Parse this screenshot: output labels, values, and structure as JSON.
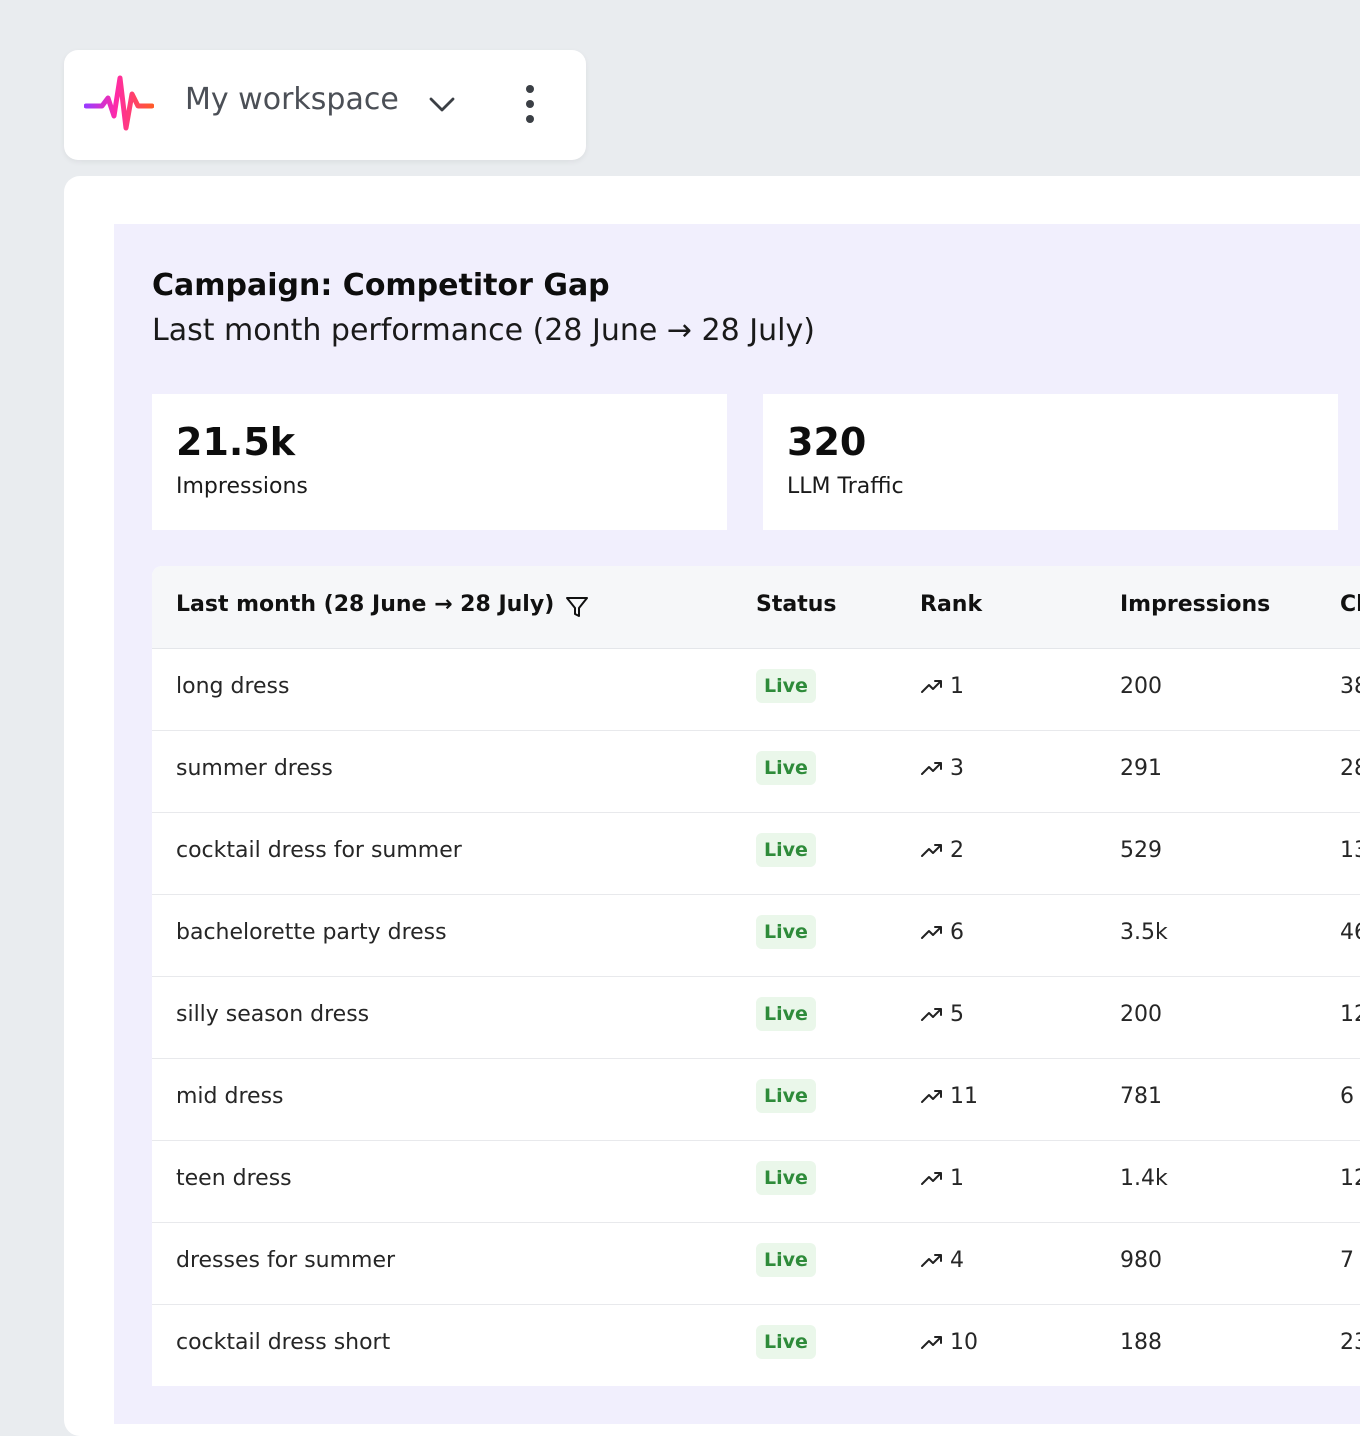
{
  "workspace": {
    "name": "My workspace",
    "logo_icon": "waveform-logo-icon",
    "chevron_icon": "chevron-down-icon",
    "more_icon": "more-vertical-icon"
  },
  "campaign": {
    "title": "Campaign: Competitor Gap",
    "subtitle": "Last month performance (28 June → 28 July)"
  },
  "stats": [
    {
      "value": "21.5k",
      "label": "Impressions"
    },
    {
      "value": "320",
      "label": "LLM Traffic"
    }
  ],
  "table": {
    "headers": {
      "period": "Last month (28 June → 28 July)",
      "status": "Status",
      "rank": "Rank",
      "impressions": "Impressions",
      "clicks": "Cl"
    },
    "rows": [
      {
        "keyword": "long dress",
        "status": "Live",
        "rank": "1",
        "impressions": "200",
        "clicks": "38"
      },
      {
        "keyword": "summer dress",
        "status": "Live",
        "rank": "3",
        "impressions": "291",
        "clicks": "28"
      },
      {
        "keyword": "cocktail dress for summer",
        "status": "Live",
        "rank": "2",
        "impressions": "529",
        "clicks": "13"
      },
      {
        "keyword": "bachelorette party dress",
        "status": "Live",
        "rank": "6",
        "impressions": "3.5k",
        "clicks": "46"
      },
      {
        "keyword": "silly season dress",
        "status": "Live",
        "rank": "5",
        "impressions": "200",
        "clicks": "12"
      },
      {
        "keyword": "mid dress",
        "status": "Live",
        "rank": "11",
        "impressions": "781",
        "clicks": "6"
      },
      {
        "keyword": "teen dress",
        "status": "Live",
        "rank": "1",
        "impressions": "1.4k",
        "clicks": "12"
      },
      {
        "keyword": "dresses for summer",
        "status": "Live",
        "rank": "4",
        "impressions": "980",
        "clicks": "7"
      },
      {
        "keyword": "cocktail dress short",
        "status": "Live",
        "rank": "10",
        "impressions": "188",
        "clicks": "23"
      }
    ]
  },
  "colors": {
    "background": "#e9ecef",
    "panel": "#f1effd",
    "live_badge_bg": "#eaf7ea",
    "live_badge_text": "#2e8b3a"
  }
}
